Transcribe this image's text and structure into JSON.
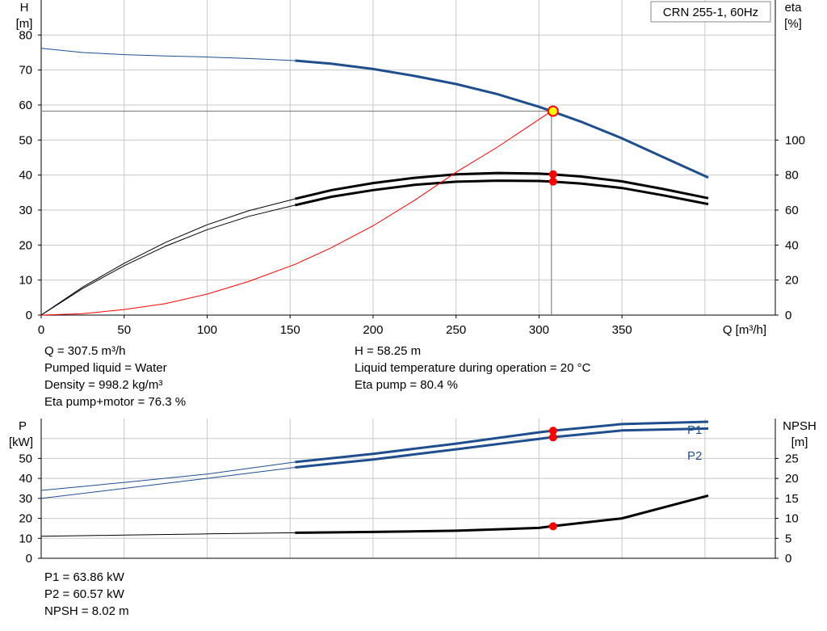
{
  "chart_data": [
    {
      "type": "line",
      "title": "CRN 255-1, 60Hz",
      "xlabel": "Q [m³/h]",
      "ylabel_left_unit": "H",
      "ylabel_left_bracket": "[m]",
      "ylabel_right_unit": "eta",
      "ylabel_right_bracket": "[%]",
      "xlim": [
        0,
        402
      ],
      "ylim_left": [
        0,
        90
      ],
      "ylim_right": [
        0,
        180
      ],
      "x_ticks": [
        "0",
        "50",
        "100",
        "150",
        "200",
        "250",
        "300",
        "350"
      ],
      "y_left_ticks": [
        "0",
        "10",
        "20",
        "30",
        "40",
        "50",
        "60",
        "70",
        "80"
      ],
      "y_right_ticks": [
        "0",
        "20",
        "40",
        "60",
        "80",
        "100"
      ],
      "grid": true,
      "operating_point": {
        "q": 307.5,
        "h": 58.25,
        "eta_pump": 80.4,
        "eta_total": 76.3
      },
      "series": [
        {
          "axis": "left",
          "color": "#1f4e8c",
          "thin": [
            [
              0,
              76.2
            ],
            [
              25,
              75.0
            ],
            [
              50,
              74.4
            ],
            [
              75,
              74.0
            ],
            [
              100,
              73.7
            ],
            [
              125,
              73.3
            ],
            [
              153,
              72.7
            ]
          ],
          "thick": [
            [
              153,
              72.7
            ],
            [
              175,
              71.8
            ],
            [
              200,
              70.3
            ],
            [
              225,
              68.3
            ],
            [
              250,
              66.0
            ],
            [
              275,
              63.1
            ],
            [
              300,
              59.5
            ],
            [
              307.5,
              58.25
            ],
            [
              325,
              55.3
            ],
            [
              350,
              50.5
            ],
            [
              375,
              45.1
            ],
            [
              402,
              39.3
            ]
          ]
        },
        {
          "axis": "right",
          "color": "#000000",
          "thin": [
            [
              0,
              0
            ],
            [
              25,
              16
            ],
            [
              50,
              29.6
            ],
            [
              75,
              41.6
            ],
            [
              100,
              51.6
            ],
            [
              125,
              59.6
            ],
            [
              153,
              66.4
            ]
          ],
          "thick": [
            [
              153,
              66.4
            ],
            [
              175,
              71.4
            ],
            [
              200,
              75.4
            ],
            [
              225,
              78.4
            ],
            [
              250,
              80.4
            ],
            [
              275,
              81.2
            ],
            [
              300,
              80.8
            ],
            [
              307.5,
              80.4
            ],
            [
              325,
              79.2
            ],
            [
              350,
              76.4
            ],
            [
              375,
              72.0
            ],
            [
              402,
              66.8
            ]
          ]
        },
        {
          "axis": "right",
          "color": "#000000",
          "thin": [
            [
              0,
              0
            ],
            [
              25,
              15.2
            ],
            [
              50,
              28.2
            ],
            [
              75,
              39.4
            ],
            [
              100,
              48.8
            ],
            [
              125,
              56.4
            ],
            [
              153,
              62.8
            ]
          ],
          "thick": [
            [
              153,
              62.8
            ],
            [
              175,
              67.6
            ],
            [
              200,
              71.4
            ],
            [
              225,
              74.4
            ],
            [
              250,
              76.2
            ],
            [
              275,
              76.8
            ],
            [
              300,
              76.6
            ],
            [
              307.5,
              76.3
            ],
            [
              325,
              75.2
            ],
            [
              350,
              72.6
            ],
            [
              375,
              68.4
            ],
            [
              402,
              63.4
            ]
          ]
        },
        {
          "axis": "left",
          "color": "#ff0000",
          "thin": [
            [
              0,
              0
            ],
            [
              25,
              0.4
            ],
            [
              50,
              1.6
            ],
            [
              75,
              3.3
            ],
            [
              100,
              6.0
            ],
            [
              125,
              9.6
            ],
            [
              153,
              14.5
            ],
            [
              175,
              19.3
            ],
            [
              200,
              25.5
            ],
            [
              225,
              32.8
            ],
            [
              250,
              40.8
            ],
            [
              275,
              48.0
            ],
            [
              307.5,
              58.25
            ]
          ],
          "thick": []
        }
      ]
    },
    {
      "type": "line",
      "ylabel_left_unit": "P",
      "ylabel_left_bracket": "[kW]",
      "ylabel_right_unit": "NPSH",
      "ylabel_right_bracket": "[m]",
      "xlim": [
        0,
        402
      ],
      "ylim_left": [
        0,
        70
      ],
      "ylim_right": [
        0,
        35
      ],
      "y_left_ticks": [
        "0",
        "10",
        "20",
        "30",
        "40",
        "50"
      ],
      "y_right_ticks": [
        "0",
        "5",
        "10",
        "15",
        "20",
        "25"
      ],
      "grid": true,
      "operating_point": {
        "q": 307.5,
        "p1": 63.86,
        "p2": 60.57,
        "npsh": 8.02
      },
      "series": [
        {
          "name": "P1",
          "axis": "left",
          "color": "#1f4e8c",
          "thin": [
            [
              0,
              34.0
            ],
            [
              50,
              38.0
            ],
            [
              100,
              42.2
            ],
            [
              153,
              48.2
            ]
          ],
          "thick": [
            [
              153,
              48.2
            ],
            [
              200,
              52.3
            ],
            [
              250,
              57.4
            ],
            [
              300,
              63.1
            ],
            [
              307.5,
              63.86
            ],
            [
              350,
              67.2
            ],
            [
              402,
              68.4
            ]
          ]
        },
        {
          "name": "P2",
          "axis": "left",
          "color": "#1f4e8c",
          "thin": [
            [
              0,
              30.0
            ],
            [
              50,
              35.0
            ],
            [
              100,
              40.0
            ],
            [
              153,
              45.5
            ]
          ],
          "thick": [
            [
              153,
              45.5
            ],
            [
              200,
              49.5
            ],
            [
              250,
              54.6
            ],
            [
              300,
              59.8
            ],
            [
              307.5,
              60.57
            ],
            [
              350,
              64.0
            ],
            [
              402,
              65.0
            ]
          ]
        },
        {
          "name": "NPSH",
          "axis": "right",
          "color": "#000000",
          "thin": [
            [
              0,
              5.5
            ],
            [
              50,
              5.8
            ],
            [
              100,
              6.1
            ],
            [
              153,
              6.4
            ]
          ],
          "thick": [
            [
              153,
              6.4
            ],
            [
              200,
              6.6
            ],
            [
              250,
              6.9
            ],
            [
              300,
              7.6
            ],
            [
              307.5,
              8.02
            ],
            [
              350,
              10.0
            ],
            [
              402,
              15.7
            ]
          ]
        }
      ]
    }
  ],
  "info_upper": {
    "q": "Q = 307.5 m³/h",
    "liquid": "Pumped liquid = Water",
    "density": "Density = 998.2 kg/m³",
    "eta_total": "Eta pump+motor = 76.3 %",
    "h": "H = 58.25 m",
    "temperature": "Liquid temperature during operation = 20 °C",
    "eta_pump": "Eta pump = 80.4 %"
  },
  "info_lower": {
    "p1": "P1 = 63.86 kW",
    "p2": "P2 = 60.57 kW",
    "npsh": "NPSH = 8.02 m"
  },
  "colors": {
    "grid": "#c8c8c8",
    "head_curve": "#1f4e8c",
    "power_curve": "#1f4e8c",
    "efficiency_curve": "#000000",
    "system_curve": "#ff0000",
    "marker": "#ff0000",
    "op_point_fill": "#ffff00"
  }
}
